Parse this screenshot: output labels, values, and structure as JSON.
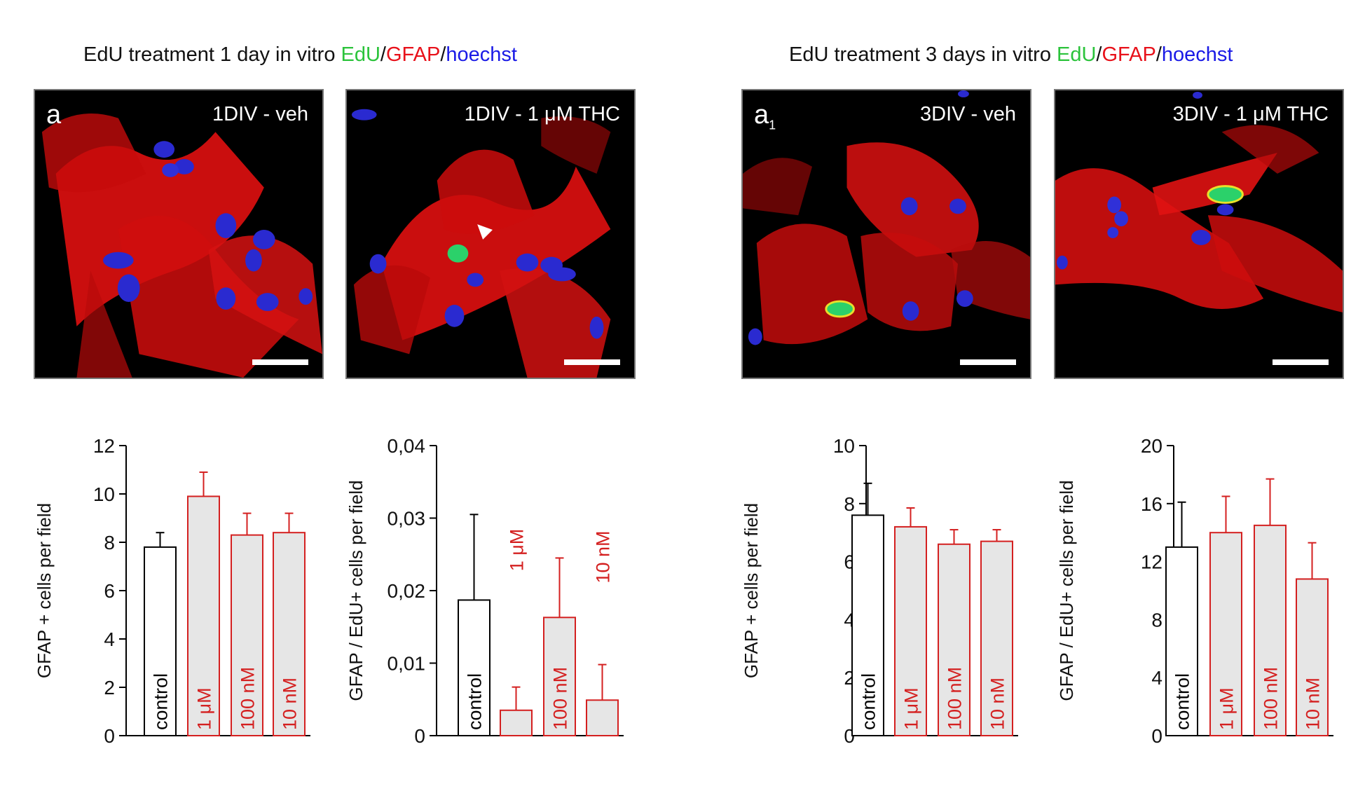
{
  "groups": [
    {
      "title_main": "EdU treatment 1 day in vitro ",
      "stain": {
        "edu": "EdU",
        "gfap": "GFAP",
        "hoechst": "hoechst"
      },
      "panels": [
        {
          "letter": "a",
          "sub": "",
          "label": "1DIV - veh"
        },
        {
          "label": "1DIV - 1 μM THC"
        }
      ]
    },
    {
      "title_main": "EdU treatment 3 days in vitro ",
      "stain": {
        "edu": "EdU",
        "gfap": "GFAP",
        "hoechst": "hoechst"
      },
      "panels": [
        {
          "letter": "a",
          "sub": "1",
          "label": "3DIV - veh"
        },
        {
          "label": "3DIV - 1 μM THC"
        }
      ]
    }
  ],
  "colors": {
    "edu": "#2bc33b",
    "gfap": "#e8111a",
    "hoechst": "#1a1ae6",
    "control_bar": "#ffffff",
    "thc_bar": "#e6e6e6",
    "thc_edge": "#d42020",
    "control_edge": "#000000"
  },
  "chart_data": [
    {
      "type": "bar",
      "ylabel": "GFAP + cells  per field",
      "ylim": [
        0,
        12
      ],
      "yticks": [
        "0",
        "2",
        "4",
        "6",
        "8",
        "10",
        "12"
      ],
      "categories": [
        "control",
        "1 μM",
        "100 nM",
        "10 nM"
      ],
      "values": [
        7.8,
        9.9,
        8.3,
        8.4
      ],
      "errors": [
        0.6,
        1.0,
        0.9,
        0.8
      ],
      "label_position": "inside"
    },
    {
      "type": "bar",
      "ylabel": "GFAP / EdU+ cells per field",
      "ylim": [
        0,
        0.04
      ],
      "yticks": [
        "0",
        "0,01",
        "0,02",
        "0,03",
        "0,04"
      ],
      "categories": [
        "control",
        "1 μM",
        "100 nM",
        "10 nM"
      ],
      "values": [
        0.0187,
        0.0035,
        0.0163,
        0.0049
      ],
      "errors": [
        0.0118,
        0.0032,
        0.0082,
        0.0049
      ],
      "label_position": "mixed"
    },
    {
      "type": "bar",
      "ylabel": "GFAP + cells  per field",
      "ylim": [
        0,
        10
      ],
      "yticks": [
        "0",
        "2",
        "4",
        "6",
        "8",
        "10"
      ],
      "categories": [
        "control",
        "1 μM",
        "100 nM",
        "10 nM"
      ],
      "values": [
        7.6,
        7.2,
        6.6,
        6.7
      ],
      "errors": [
        1.1,
        0.65,
        0.5,
        0.4
      ],
      "label_position": "inside"
    },
    {
      "type": "bar",
      "ylabel": "GFAP / EdU+ cells per field",
      "ylim": [
        0,
        20
      ],
      "yticks": [
        "0",
        "4",
        "8",
        "12",
        "16",
        "20"
      ],
      "categories": [
        "control",
        "1 μM",
        "100 nM",
        "10 nM"
      ],
      "values": [
        13.0,
        14.0,
        14.5,
        10.8
      ],
      "errors": [
        3.1,
        2.5,
        3.2,
        2.5
      ],
      "label_position": "inside"
    }
  ]
}
